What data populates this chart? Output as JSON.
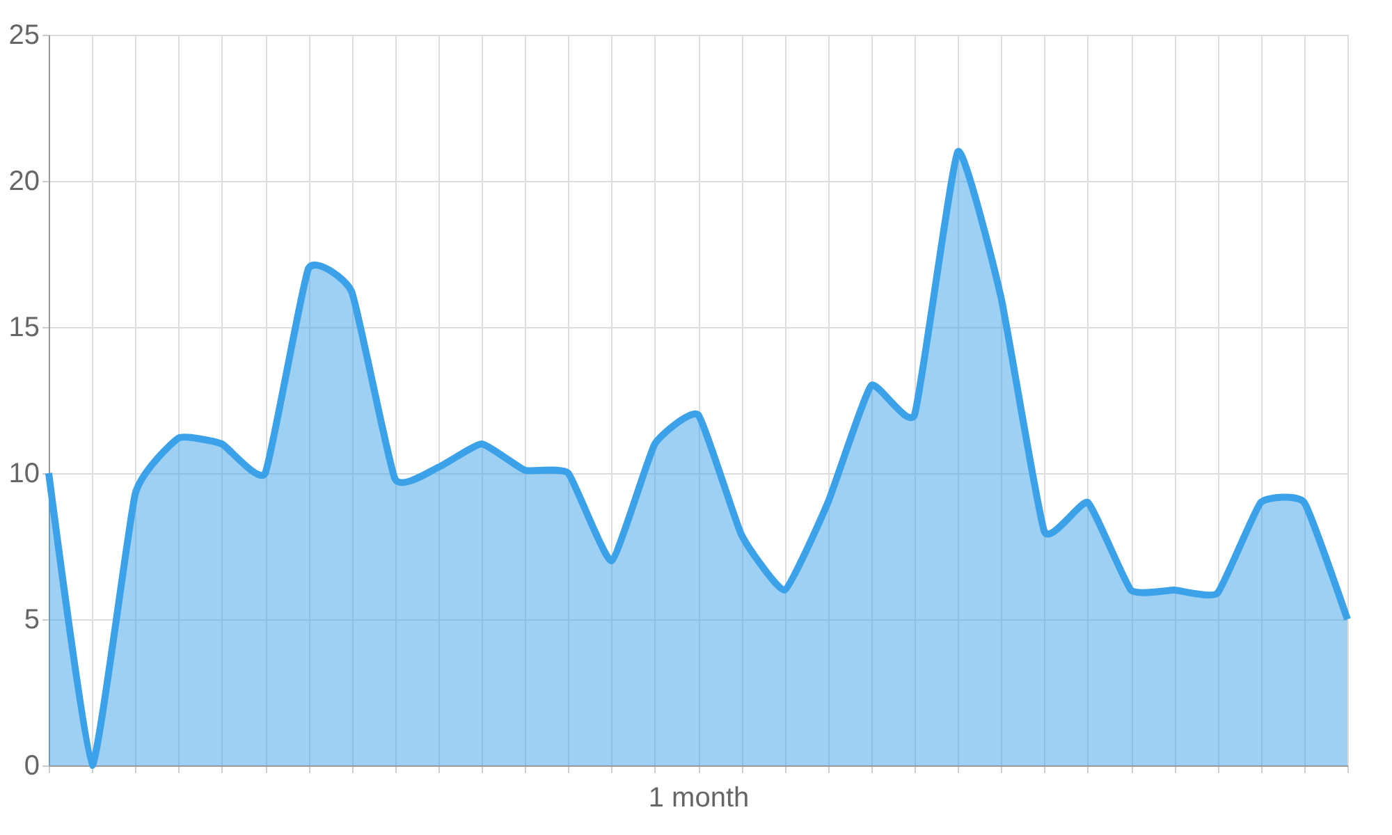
{
  "chart_data": {
    "type": "area",
    "xlabel": "1 month",
    "categories": [
      null,
      null,
      null,
      null,
      null,
      null,
      null,
      null,
      null,
      null,
      null,
      null,
      null,
      null,
      null,
      null,
      null,
      null,
      null,
      null,
      null,
      null,
      null,
      null,
      null,
      null,
      null,
      null,
      null,
      null,
      null
    ],
    "series": [
      {
        "color": "#3ba1e8",
        "values": [
          10,
          0,
          9.3,
          11.2,
          11,
          10,
          17,
          16.2,
          9.8,
          10.2,
          11,
          10.1,
          10,
          7,
          11,
          12,
          7.9,
          6,
          9,
          13,
          12,
          21,
          16,
          8,
          9,
          6,
          6,
          5.9,
          9,
          9,
          5
        ]
      }
    ],
    "ylim": [
      0,
      25
    ],
    "yticks": [
      0,
      5,
      10,
      15,
      20,
      25
    ],
    "grid": true
  }
}
